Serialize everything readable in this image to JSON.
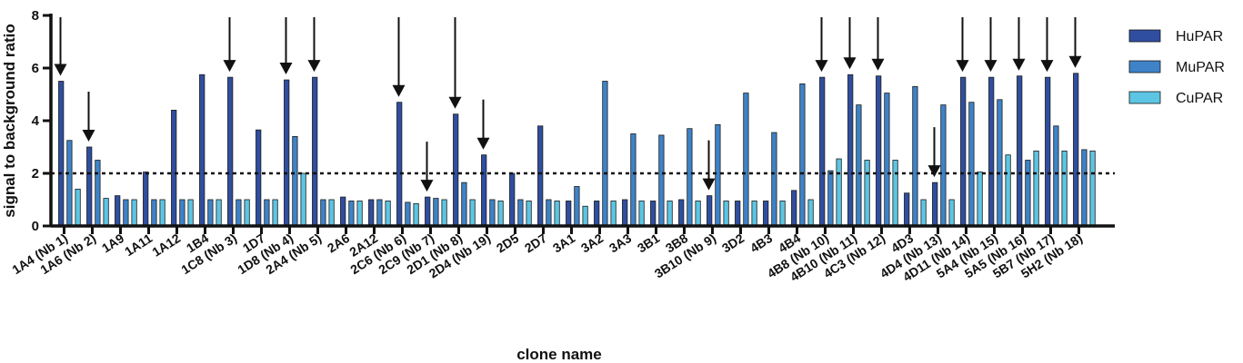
{
  "chart_data": {
    "type": "bar",
    "xlabel": "clone name",
    "ylabel": "signal to background ratio",
    "ylim": [
      0,
      8
    ],
    "yticks": [
      0,
      2,
      4,
      6,
      8
    ],
    "threshold": 2,
    "grid": false,
    "legend_position": "right",
    "categories": [
      "1A4 (Nb 1)",
      "1A6 (Nb 2)",
      "1A9",
      "1A11",
      "1A12",
      "1B4",
      "1C8 (Nb 3)",
      "1D7",
      "1D8 (Nb 4)",
      "2A4 (Nb 5)",
      "2A6",
      "2A12",
      "2C6 (Nb 6)",
      "2C9 (Nb 7)",
      "2D1 (Nb 8)",
      "2D4 (Nb 19)",
      "2D5",
      "2D7",
      "3A1",
      "3A2",
      "3A3",
      "3B1",
      "3B8",
      "3B10 (Nb 9)",
      "3D2",
      "4B3",
      "4B4",
      "4B8 (Nb 10)",
      "4B10 (Nb 11)",
      "4C3 (Nb 12)",
      "4D3",
      "4D4 (Nb 13)",
      "4D11 (Nb 14)",
      "5A4 (Nb 15)",
      "5A5 (Nb 16)",
      "5B7 (Nb 17)",
      "5H2 (Nb 18)"
    ],
    "series": [
      {
        "name": "HuPAR",
        "color": "#2f4ea0",
        "values": [
          5.5,
          3.0,
          1.15,
          2.05,
          4.4,
          5.75,
          5.65,
          3.65,
          5.55,
          5.65,
          1.1,
          1.0,
          4.7,
          1.1,
          4.25,
          2.7,
          2.0,
          3.8,
          0.95,
          0.95,
          1.0,
          0.95,
          1.0,
          1.15,
          0.95,
          0.95,
          1.35,
          5.65,
          5.75,
          5.7,
          1.25,
          1.65,
          5.65,
          5.65,
          5.7,
          5.65,
          5.8
        ]
      },
      {
        "name": "MuPAR",
        "color": "#3e83c8",
        "values": [
          3.25,
          2.5,
          1.0,
          1.0,
          1.0,
          1.0,
          1.0,
          1.0,
          3.4,
          1.0,
          0.95,
          1.0,
          0.9,
          1.05,
          1.65,
          1.0,
          1.0,
          1.0,
          1.5,
          5.5,
          3.5,
          3.45,
          3.7,
          3.85,
          5.05,
          3.55,
          5.4,
          2.1,
          4.6,
          5.05,
          5.3,
          4.6,
          4.7,
          4.8,
          2.5,
          3.8,
          2.9
        ]
      },
      {
        "name": "CuPAR",
        "color": "#5cc5e3",
        "values": [
          1.4,
          1.05,
          1.0,
          1.0,
          1.0,
          1.0,
          1.0,
          1.0,
          2.0,
          1.0,
          0.95,
          0.95,
          0.85,
          1.0,
          1.0,
          0.95,
          0.95,
          0.95,
          0.75,
          0.95,
          0.95,
          0.95,
          0.95,
          0.95,
          0.95,
          0.95,
          1.0,
          2.55,
          2.5,
          2.5,
          1.0,
          1.0,
          2.05,
          2.7,
          2.85,
          2.85,
          2.85
        ]
      }
    ],
    "arrows": [
      "1A4 (Nb 1)",
      "1A6 (Nb 2)",
      "1C8 (Nb 3)",
      "1D8 (Nb 4)",
      "2A4 (Nb 5)",
      "2C6 (Nb 6)",
      "2C9 (Nb 7)",
      "2D1 (Nb 8)",
      "2D4 (Nb 19)",
      "3B10 (Nb 9)",
      "4B8 (Nb 10)",
      "4B10 (Nb 11)",
      "4C3 (Nb 12)",
      "4D4 (Nb 13)",
      "4D11 (Nb 14)",
      "5A4 (Nb 15)",
      "5A5 (Nb 16)",
      "5B7 (Nb 17)",
      "5H2 (Nb 18)"
    ]
  }
}
